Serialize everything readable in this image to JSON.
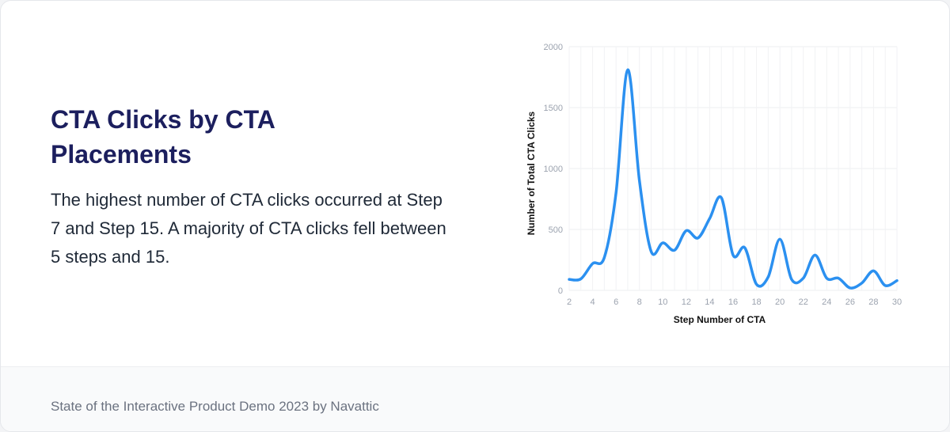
{
  "heading": "CTA Clicks by CTA Placements",
  "description": "The highest number of CTA clicks occurred at Step 7 and Step 15. A majority of CTA clicks fell between 5 steps and 15.",
  "footer": {
    "text": "State of the Interactive Product Demo 2023 by Navattic"
  },
  "colors": {
    "line": "#2b90f0",
    "title": "#1c1f5e"
  },
  "chart_data": {
    "type": "line",
    "title": "",
    "xlabel": "Step Number of CTA",
    "ylabel": "Number of Total CTA Clicks",
    "xlim": [
      2,
      30
    ],
    "ylim": [
      0,
      2000
    ],
    "xticks": [
      2,
      4,
      6,
      8,
      10,
      12,
      14,
      16,
      18,
      20,
      22,
      24,
      26,
      28,
      30
    ],
    "yticks": [
      0,
      500,
      1000,
      1500,
      2000
    ],
    "grid": true,
    "x": [
      2,
      3,
      4,
      5,
      6,
      7,
      8,
      9,
      10,
      11,
      12,
      13,
      14,
      15,
      16,
      17,
      18,
      19,
      20,
      21,
      22,
      23,
      24,
      25,
      26,
      27,
      28,
      29,
      30
    ],
    "series": [
      {
        "values": [
          90,
          95,
          220,
          270,
          800,
          1810,
          900,
          320,
          390,
          330,
          490,
          430,
          590,
          760,
          290,
          350,
          50,
          110,
          420,
          90,
          100,
          290,
          100,
          100,
          20,
          60,
          160,
          40,
          80
        ]
      }
    ]
  }
}
